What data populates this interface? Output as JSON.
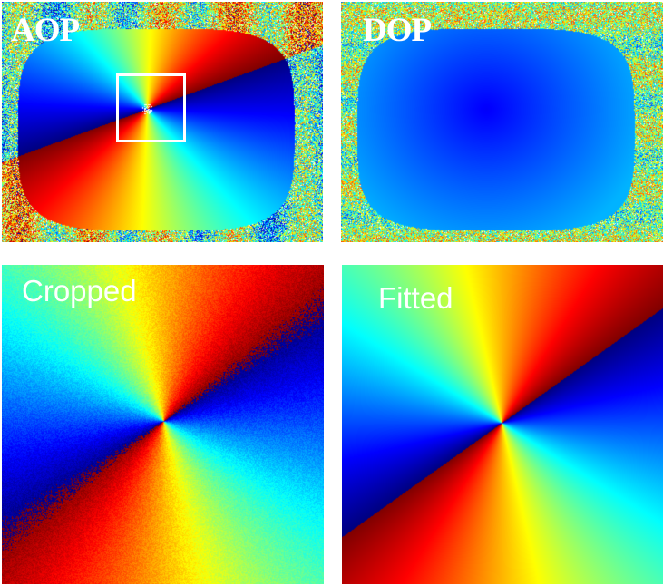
{
  "panels": {
    "aop": {
      "label": "AOP",
      "map": "angle-of-polarization-jet"
    },
    "dop": {
      "label": "DOP",
      "map": "degree-of-polarization-jet"
    },
    "cropped": {
      "label": "Cropped",
      "map": "angle-of-polarization-jet"
    },
    "fitted": {
      "label": "Fitted",
      "map": "angle-of-polarization-jet"
    }
  },
  "colormap": "jet",
  "colors": {
    "label": "#ffffff",
    "crop_box": "#ffffff"
  }
}
